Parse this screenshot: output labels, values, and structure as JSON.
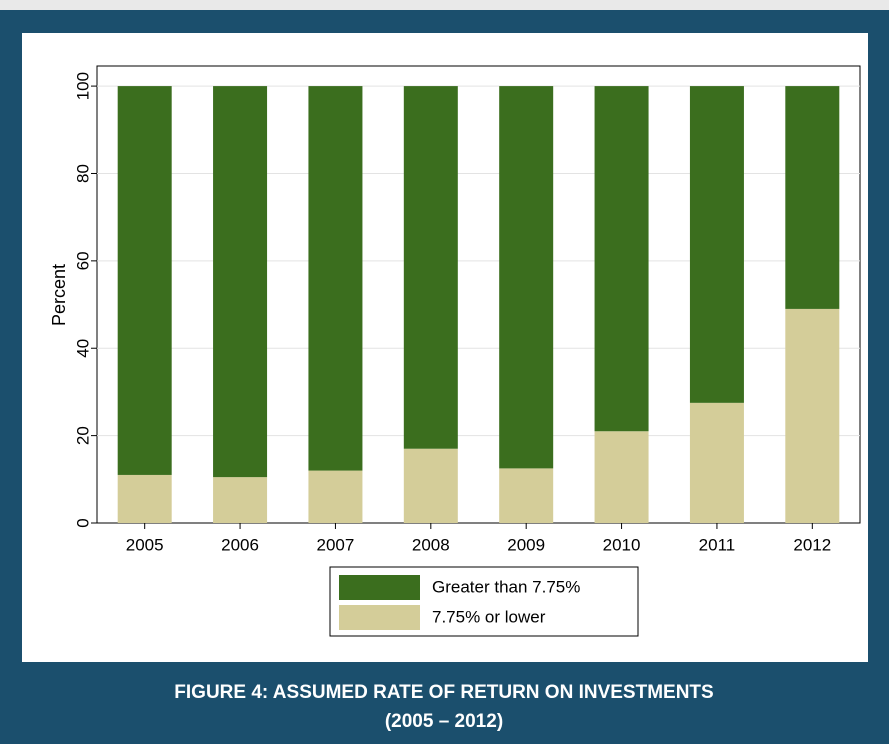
{
  "chart_data": {
    "type": "stacked-bar",
    "categories": [
      "2005",
      "2006",
      "2007",
      "2008",
      "2009",
      "2010",
      "2011",
      "2012"
    ],
    "series": [
      {
        "name": "Greater than 7.75%",
        "color": "#3b6e1e",
        "values": [
          89,
          89.5,
          88,
          83,
          87.5,
          79,
          72.5,
          51
        ]
      },
      {
        "name": "7.75% or lower",
        "color": "#d4cd99",
        "values": [
          11,
          10.5,
          12,
          17,
          12.5,
          21,
          27.5,
          49
        ]
      }
    ],
    "y_label": "Percent",
    "ylim": [
      0,
      104.6
    ],
    "yticks": [
      0,
      20,
      40,
      60,
      80,
      100
    ],
    "grid": true,
    "caption": [
      "FIGURE 4: ASSUMED RATE OF RETURN ON INVESTMENTS",
      "(2005 – 2012)"
    ]
  }
}
